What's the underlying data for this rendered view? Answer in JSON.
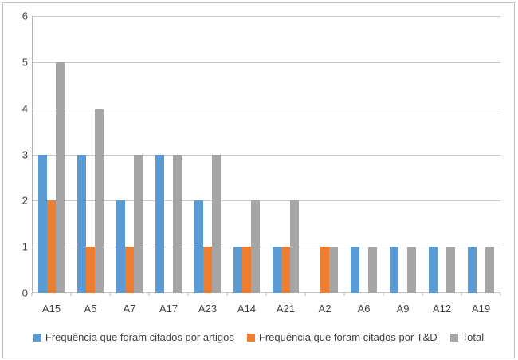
{
  "chart_data": {
    "type": "bar",
    "title": "",
    "xlabel": "",
    "ylabel": "",
    "categories": [
      "A15",
      "A5",
      "A7",
      "A17",
      "A23",
      "A14",
      "A21",
      "A2",
      "A6",
      "A9",
      "A12",
      "A19"
    ],
    "series": [
      {
        "name": "Frequência que foram citados por artigos",
        "color": "#5B9BD5",
        "values": [
          3,
          3,
          2,
          3,
          2,
          1,
          1,
          0,
          1,
          1,
          1,
          1
        ]
      },
      {
        "name": "Frequência que foram citados por T&D",
        "color": "#ED7D31",
        "values": [
          2,
          1,
          1,
          0,
          1,
          1,
          1,
          1,
          0,
          0,
          0,
          0
        ]
      },
      {
        "name": "Total",
        "color": "#A5A5A5",
        "values": [
          5,
          4,
          3,
          3,
          3,
          2,
          2,
          1,
          1,
          1,
          1,
          1
        ]
      }
    ],
    "ylim": [
      0,
      6
    ],
    "yticks": [
      0,
      1,
      2,
      3,
      4,
      5,
      6
    ],
    "grid": true,
    "legend_position": "bottom"
  },
  "colors": {
    "background": "#FFFFFF",
    "frame_border": "#C0C0C0",
    "gridline": "#C9C9C9",
    "axis_line": "#B3B3B3",
    "text": "#404040"
  }
}
